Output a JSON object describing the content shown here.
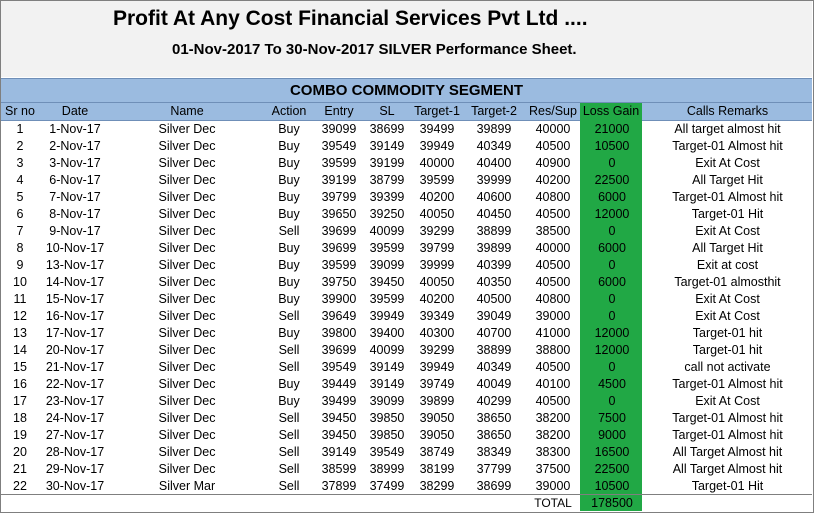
{
  "header": {
    "title": "Profit At Any Cost Financial Services Pvt Ltd ....",
    "subtitle": "01-Nov-2017 To 30-Nov-2017 SILVER Performance Sheet."
  },
  "segment_title": "COMBO COMMODITY  SEGMENT",
  "columns": {
    "sr": "Sr no",
    "date": "Date",
    "name": "Name",
    "action": "Action",
    "entry": "Entry",
    "sl": "SL",
    "t1": "Target-1",
    "t2": "Target-2",
    "rs": "Res/Sup",
    "lg": "Loss Gain",
    "rem": "Calls Remarks"
  },
  "rows": [
    {
      "sr": "1",
      "date": "1-Nov-17",
      "name": "Silver Dec",
      "action": "Buy",
      "entry": "39099",
      "sl": "38699",
      "t1": "39499",
      "t2": "39899",
      "rs": "40000",
      "lg": "21000",
      "rem": "All target almost hit"
    },
    {
      "sr": "2",
      "date": "2-Nov-17",
      "name": "Silver Dec",
      "action": "Buy",
      "entry": "39549",
      "sl": "39149",
      "t1": "39949",
      "t2": "40349",
      "rs": "40500",
      "lg": "10500",
      "rem": "Target-01 Almost hit"
    },
    {
      "sr": "3",
      "date": "3-Nov-17",
      "name": "Silver Dec",
      "action": "Buy",
      "entry": "39599",
      "sl": "39199",
      "t1": "40000",
      "t2": "40400",
      "rs": "40900",
      "lg": "0",
      "rem": "Exit At Cost"
    },
    {
      "sr": "4",
      "date": "6-Nov-17",
      "name": "Silver Dec",
      "action": "Buy",
      "entry": "39199",
      "sl": "38799",
      "t1": "39599",
      "t2": "39999",
      "rs": "40200",
      "lg": "22500",
      "rem": "All Target Hit"
    },
    {
      "sr": "5",
      "date": "7-Nov-17",
      "name": "Silver Dec",
      "action": "Buy",
      "entry": "39799",
      "sl": "39399",
      "t1": "40200",
      "t2": "40600",
      "rs": "40800",
      "lg": "6000",
      "rem": "Target-01 Almost hit"
    },
    {
      "sr": "6",
      "date": "8-Nov-17",
      "name": "Silver Dec",
      "action": "Buy",
      "entry": "39650",
      "sl": "39250",
      "t1": "40050",
      "t2": "40450",
      "rs": "40500",
      "lg": "12000",
      "rem": "Target-01 Hit"
    },
    {
      "sr": "7",
      "date": "9-Nov-17",
      "name": "Silver Dec",
      "action": "Sell",
      "entry": "39699",
      "sl": "40099",
      "t1": "39299",
      "t2": "38899",
      "rs": "38500",
      "lg": "0",
      "rem": "Exit At Cost"
    },
    {
      "sr": "8",
      "date": "10-Nov-17",
      "name": "Silver Dec",
      "action": "Buy",
      "entry": "39699",
      "sl": "39599",
      "t1": "39799",
      "t2": "39899",
      "rs": "40000",
      "lg": "6000",
      "rem": "All Target Hit"
    },
    {
      "sr": "9",
      "date": "13-Nov-17",
      "name": "Silver Dec",
      "action": "Buy",
      "entry": "39599",
      "sl": "39099",
      "t1": "39999",
      "t2": "40399",
      "rs": "40500",
      "lg": "0",
      "rem": "Exit at cost"
    },
    {
      "sr": "10",
      "date": "14-Nov-17",
      "name": "Silver Dec",
      "action": "Buy",
      "entry": "39750",
      "sl": "39450",
      "t1": "40050",
      "t2": "40350",
      "rs": "40500",
      "lg": "6000",
      "rem": "Target-01 almosthit"
    },
    {
      "sr": "11",
      "date": "15-Nov-17",
      "name": "Silver Dec",
      "action": "Buy",
      "entry": "39900",
      "sl": "39599",
      "t1": "40200",
      "t2": "40500",
      "rs": "40800",
      "lg": "0",
      "rem": "Exit At Cost"
    },
    {
      "sr": "12",
      "date": "16-Nov-17",
      "name": "Silver Dec",
      "action": "Sell",
      "entry": "39649",
      "sl": "39949",
      "t1": "39349",
      "t2": "39049",
      "rs": "39000",
      "lg": "0",
      "rem": "Exit At Cost"
    },
    {
      "sr": "13",
      "date": "17-Nov-17",
      "name": "Silver Dec",
      "action": "Buy",
      "entry": "39800",
      "sl": "39400",
      "t1": "40300",
      "t2": "40700",
      "rs": "41000",
      "lg": "12000",
      "rem": "Target-01 hit"
    },
    {
      "sr": "14",
      "date": "20-Nov-17",
      "name": "Silver Dec",
      "action": "Sell",
      "entry": "39699",
      "sl": "40099",
      "t1": "39299",
      "t2": "38899",
      "rs": "38800",
      "lg": "12000",
      "rem": "Target-01 hit"
    },
    {
      "sr": "15",
      "date": "21-Nov-17",
      "name": "Silver Dec",
      "action": "Sell",
      "entry": "39549",
      "sl": "39149",
      "t1": "39949",
      "t2": "40349",
      "rs": "40500",
      "lg": "0",
      "rem": "call not activate"
    },
    {
      "sr": "16",
      "date": "22-Nov-17",
      "name": "Silver Dec",
      "action": "Buy",
      "entry": "39449",
      "sl": "39149",
      "t1": "39749",
      "t2": "40049",
      "rs": "40100",
      "lg": "4500",
      "rem": "Target-01 Almost hit"
    },
    {
      "sr": "17",
      "date": "23-Nov-17",
      "name": "Silver Dec",
      "action": "Buy",
      "entry": "39499",
      "sl": "39099",
      "t1": "39899",
      "t2": "40299",
      "rs": "40500",
      "lg": "0",
      "rem": "Exit At Cost"
    },
    {
      "sr": "18",
      "date": "24-Nov-17",
      "name": "Silver Dec",
      "action": "Sell",
      "entry": "39450",
      "sl": "39850",
      "t1": "39050",
      "t2": "38650",
      "rs": "38200",
      "lg": "7500",
      "rem": "Target-01 Almost hit"
    },
    {
      "sr": "19",
      "date": "27-Nov-17",
      "name": "Silver Dec",
      "action": "Sell",
      "entry": "39450",
      "sl": "39850",
      "t1": "39050",
      "t2": "38650",
      "rs": "38200",
      "lg": "9000",
      "rem": "Target-01 Almost hit"
    },
    {
      "sr": "20",
      "date": "28-Nov-17",
      "name": "Silver Dec",
      "action": "Sell",
      "entry": "39149",
      "sl": "39549",
      "t1": "38749",
      "t2": "38349",
      "rs": "38300",
      "lg": "16500",
      "rem": "All Target Almost hit"
    },
    {
      "sr": "21",
      "date": "29-Nov-17",
      "name": "Silver Dec",
      "action": "Sell",
      "entry": "38599",
      "sl": "38999",
      "t1": "38199",
      "t2": "37799",
      "rs": "37500",
      "lg": "22500",
      "rem": "All Target Almost hit"
    },
    {
      "sr": "22",
      "date": "30-Nov-17",
      "name": "Silver Mar",
      "action": "Sell",
      "entry": "37899",
      "sl": "37499",
      "t1": "38299",
      "t2": "38699",
      "rs": "39000",
      "lg": "10500",
      "rem": "Target-01 Hit"
    }
  ],
  "total": {
    "label": "TOTAL",
    "value": "178500"
  },
  "colors": {
    "header_band": "#9bbbe0",
    "loss_gain_column": "#21a845",
    "title_background": "#f2f2f2"
  }
}
